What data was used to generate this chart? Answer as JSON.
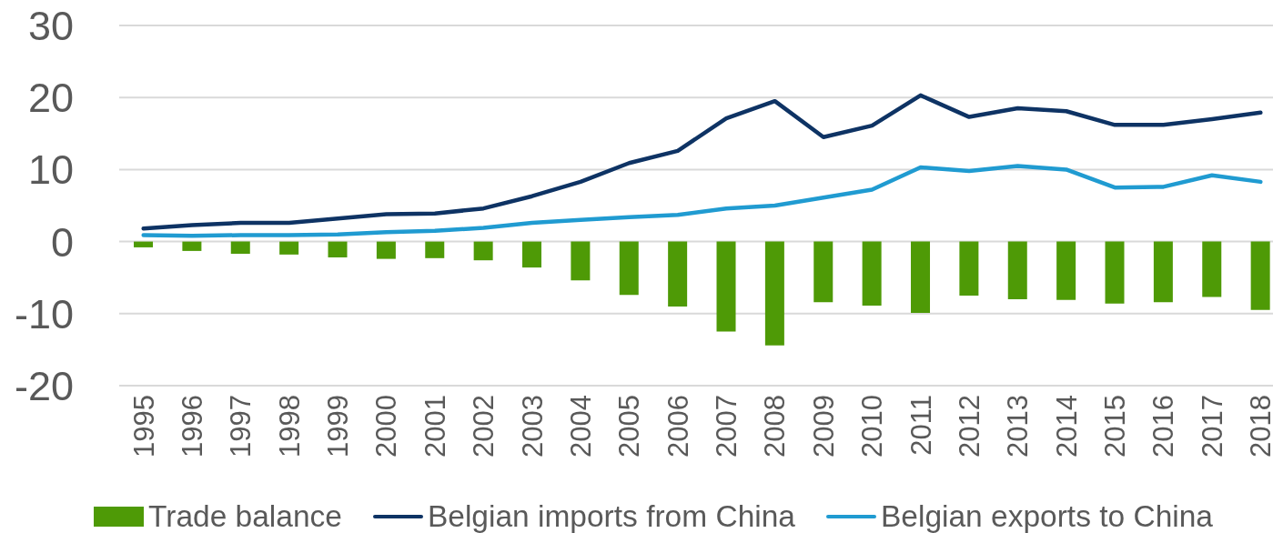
{
  "chart_data": {
    "type": "bar",
    "categories": [
      "1995",
      "1996",
      "1997",
      "1998",
      "1999",
      "2000",
      "2001",
      "2002",
      "2003",
      "2004",
      "2005",
      "2006",
      "2007",
      "2008",
      "2009",
      "2010",
      "2011",
      "2012",
      "2013",
      "2014",
      "2015",
      "2016",
      "2017",
      "2018"
    ],
    "series": [
      {
        "name": "Trade balance",
        "color": "#4e9a06",
        "values": [
          -0.8,
          -1.3,
          -1.7,
          -1.8,
          -2.2,
          -2.4,
          -2.3,
          -2.6,
          -3.6,
          -5.4,
          -7.4,
          -9.0,
          -12.5,
          -14.4,
          -8.4,
          -8.9,
          -9.9,
          -7.5,
          -8.0,
          -8.1,
          -8.6,
          -8.4,
          -7.7,
          -9.5
        ]
      },
      {
        "name": "Belgian imports from China",
        "type": "line",
        "color": "#0e3364",
        "values": [
          1.8,
          2.3,
          2.6,
          2.6,
          3.2,
          3.8,
          3.9,
          4.6,
          6.3,
          8.3,
          10.9,
          12.6,
          17.1,
          19.5,
          14.5,
          16.1,
          20.3,
          17.3,
          18.5,
          18.1,
          16.2,
          16.2,
          17.0,
          17.9
        ]
      },
      {
        "name": "Belgian exports to China",
        "type": "line",
        "color": "#209bd1",
        "values": [
          0.9,
          0.8,
          0.9,
          0.9,
          1.0,
          1.3,
          1.5,
          1.9,
          2.6,
          3.0,
          3.4,
          3.7,
          4.6,
          5.0,
          6.1,
          7.2,
          10.3,
          9.8,
          10.5,
          10.0,
          7.5,
          7.6,
          9.2,
          8.3
        ]
      }
    ],
    "ylim": [
      -20,
      30
    ],
    "yticks": [
      -20,
      -10,
      0,
      10,
      20,
      30
    ],
    "grid": "y",
    "legend": "bottom",
    "marker": "none",
    "line_style": "solid"
  }
}
